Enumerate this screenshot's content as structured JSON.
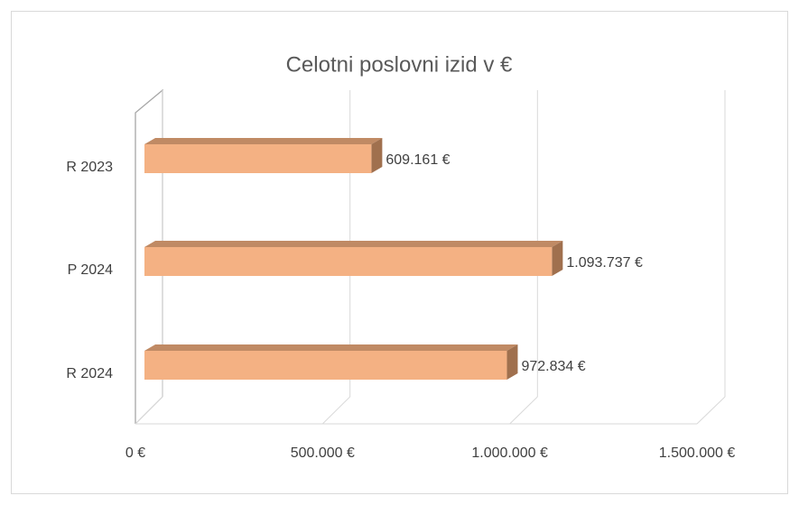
{
  "chart_data": {
    "type": "bar3d_horizontal",
    "title": "Celotni poslovni izid v €",
    "categories": [
      "R 2023",
      "P 2024",
      "R 2024"
    ],
    "values": [
      609161,
      1093737,
      972834
    ],
    "value_labels": [
      "609.161 €",
      "1.093.737 €",
      "972.834 €"
    ],
    "color": "#f4b183",
    "xlim": [
      0,
      1500000
    ],
    "xticks": [
      {
        "value": 0,
        "label": "0 €"
      },
      {
        "value": 500000,
        "label": "500.000 €"
      },
      {
        "value": 1000000,
        "label": "1.000.000 €"
      },
      {
        "value": 1500000,
        "label": "1.500.000 €"
      }
    ],
    "grid": true
  }
}
